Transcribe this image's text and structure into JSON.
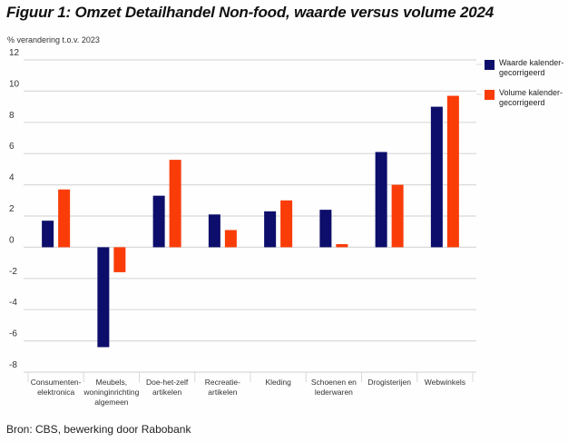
{
  "title": "Figuur 1: Omzet Detailhandel Non-food, waarde versus volume 2024",
  "source": "Bron: CBS, bewerking door Rabobank",
  "colors": {
    "waarde": "#0d0d6b",
    "volume": "#fa3c08",
    "grid": "#d9d9d9"
  },
  "chart_data": {
    "type": "bar",
    "title": "Figuur 1: Omzet Detailhandel Non-food, waarde versus volume 2024",
    "xlabel": "",
    "ylabel": "% verandering t.o.v. 2023",
    "ylim": [
      -8,
      12
    ],
    "yticks": [
      12,
      10,
      8,
      6,
      4,
      2,
      0,
      -2,
      -4,
      -6,
      -8
    ],
    "grid": true,
    "legend_position": "top-right",
    "categories": [
      [
        "Consumenten-",
        "elektronica"
      ],
      [
        "Meubels,",
        "woninginrichting",
        "algemeen"
      ],
      [
        "Doe-het-zelf",
        "artikelen"
      ],
      [
        "Recreatie-",
        "artikelen"
      ],
      [
        "Kleding"
      ],
      [
        "Schoenen en",
        "lederwaren"
      ],
      [
        "Drogisterijen"
      ],
      [
        "Webwinkels"
      ]
    ],
    "series": [
      {
        "name": [
          "Waarde kalender-",
          "gecorrigeerd"
        ],
        "color": "#0d0d6b",
        "values": [
          1.7,
          -6.4,
          3.3,
          2.1,
          2.3,
          2.4,
          6.1,
          9.0
        ]
      },
      {
        "name": [
          "Volume kalender-",
          "gecorrigeerd"
        ],
        "color": "#fa3c08",
        "values": [
          3.7,
          -1.6,
          5.6,
          1.1,
          3.0,
          0.2,
          4.0,
          9.7
        ]
      }
    ]
  }
}
